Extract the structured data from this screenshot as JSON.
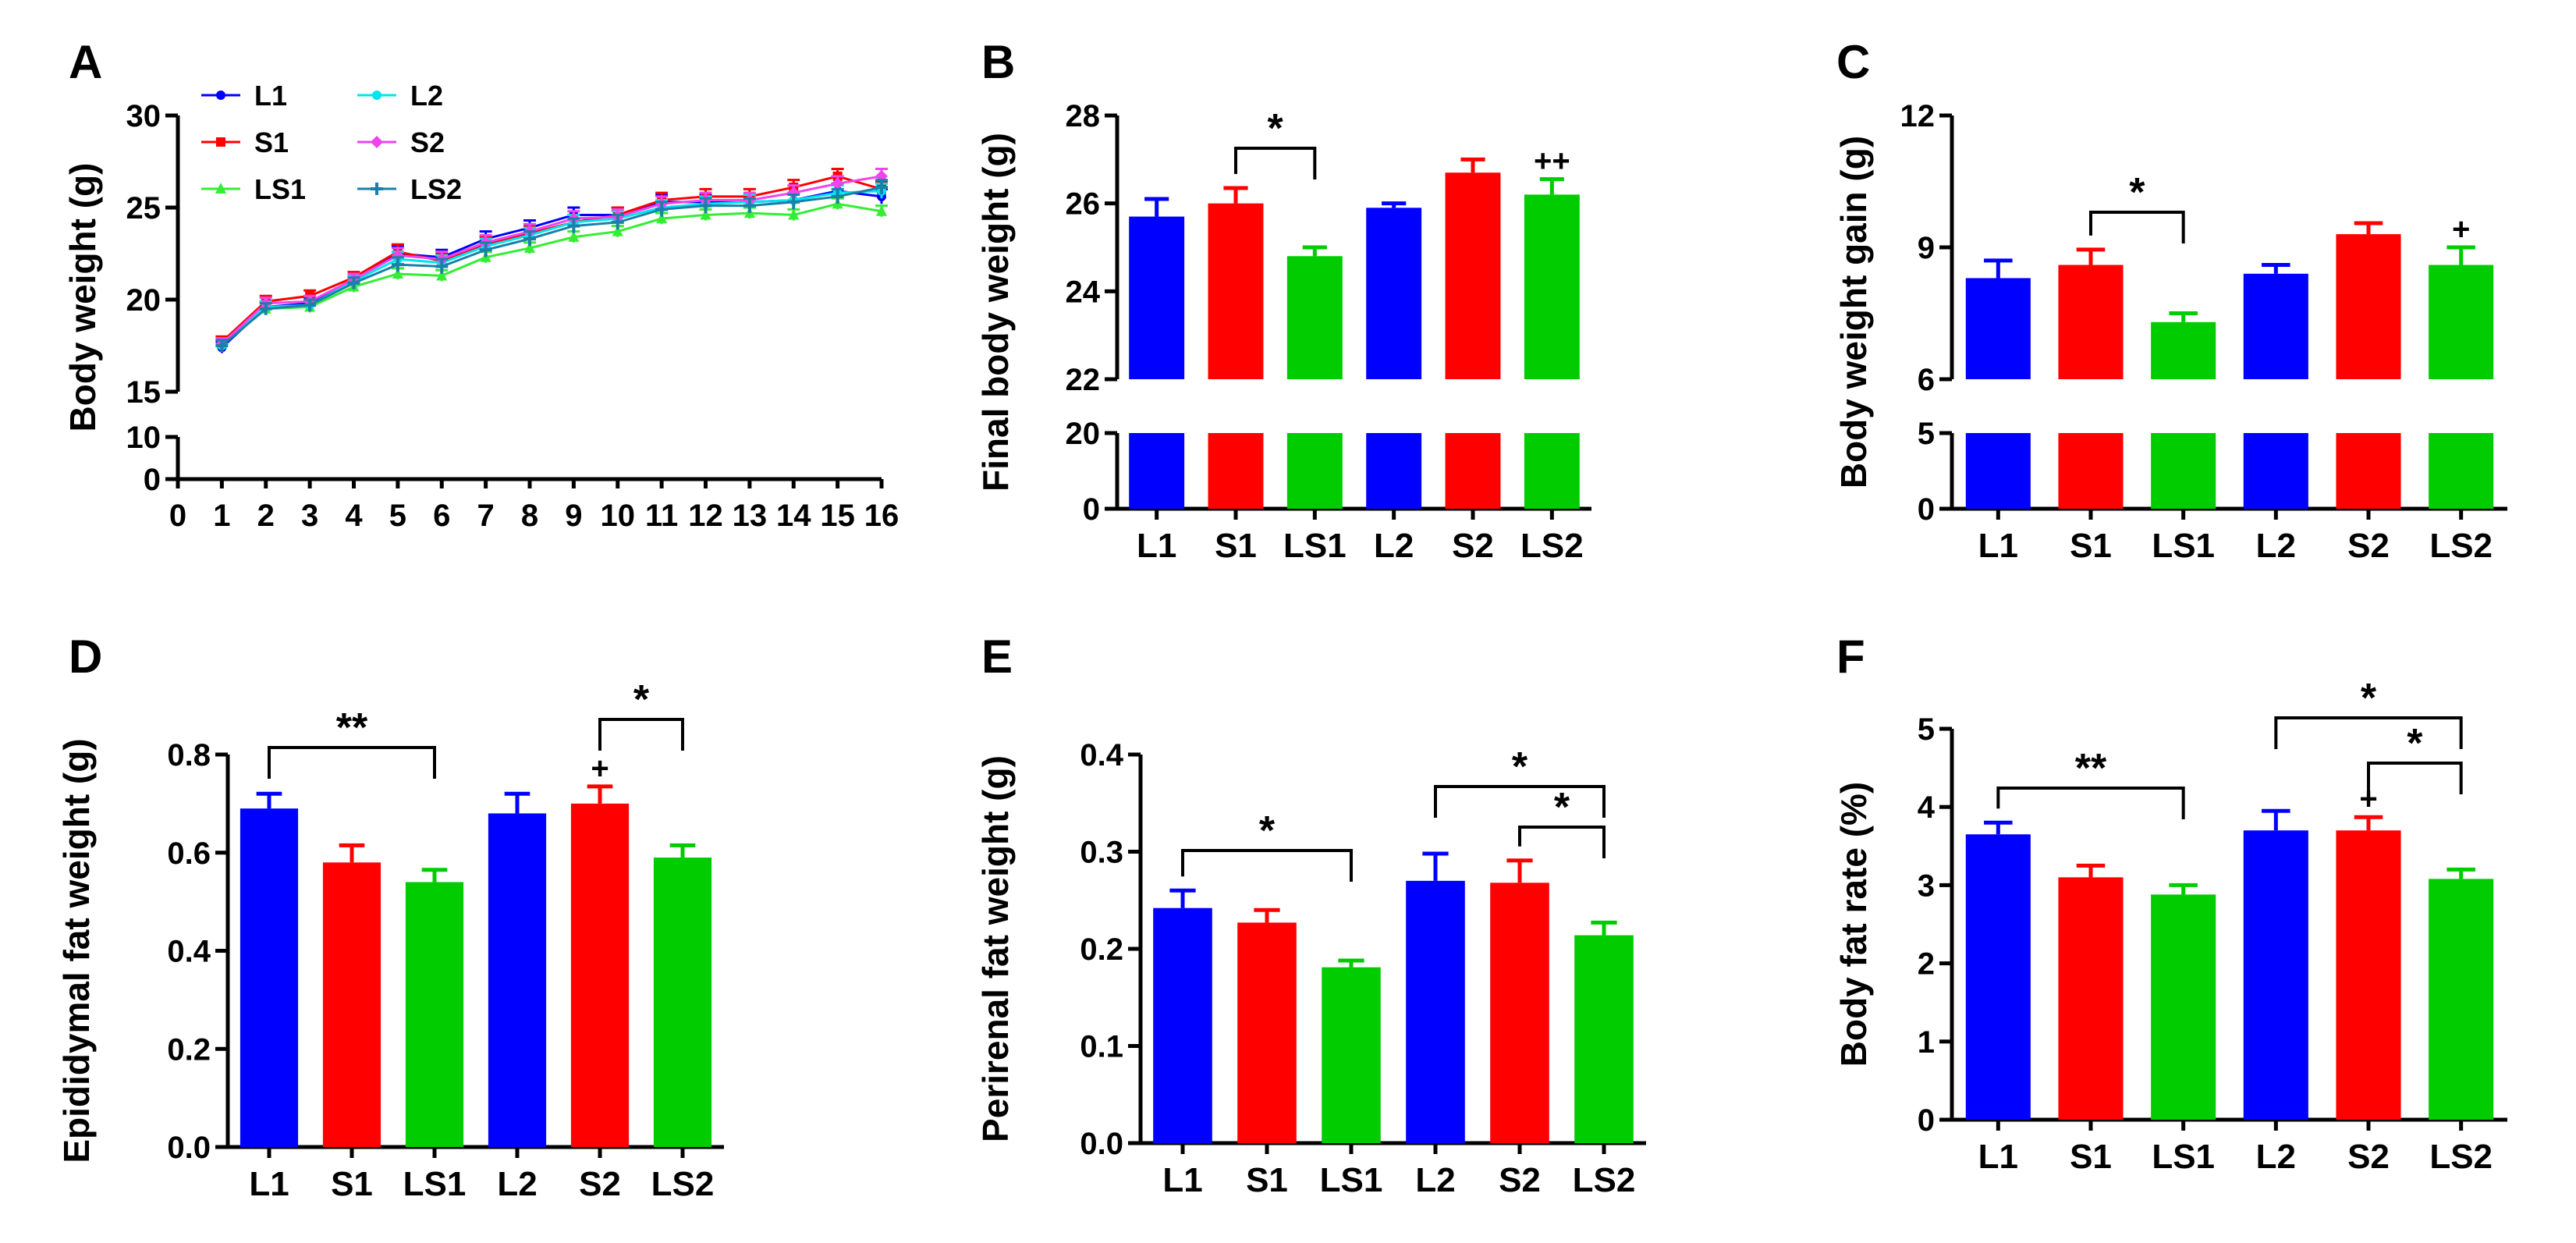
{
  "chart_data": [
    {
      "panel": "A",
      "type": "line",
      "ylabel": "Body weight (g)",
      "xlabel": "",
      "x": [
        1,
        2,
        3,
        4,
        5,
        6,
        7,
        8,
        9,
        10,
        11,
        12,
        13,
        14,
        15,
        16
      ],
      "xticks": [
        "0",
        "1",
        "2",
        "3",
        "4",
        "5",
        "6",
        "7",
        "8",
        "9",
        "10",
        "11",
        "12",
        "13",
        "14",
        "15",
        "16"
      ],
      "yticks_upper": [
        "15",
        "20",
        "25",
        "30"
      ],
      "yticks_lower": [
        "0",
        "10"
      ],
      "ylim_upper": [
        15,
        30
      ],
      "ylim_lower": [
        0,
        10
      ],
      "legend_position": "top-left",
      "series": [
        {
          "name": "L1",
          "color": "#0000ff",
          "marker": "circle",
          "values": [
            17.4,
            19.6,
            19.8,
            21.1,
            22.5,
            22.3,
            23.3,
            23.9,
            24.6,
            24.6,
            25.3,
            25.3,
            25.3,
            25.4,
            25.9,
            25.6
          ],
          "errors": [
            0.3,
            0.3,
            0.3,
            0.3,
            0.4,
            0.4,
            0.4,
            0.4,
            0.4,
            0.4,
            0.4,
            0.4,
            0.4,
            0.4,
            0.4,
            0.4
          ]
        },
        {
          "name": "S1",
          "color": "#ff0000",
          "marker": "square",
          "values": [
            17.7,
            19.9,
            20.2,
            21.2,
            22.6,
            22.1,
            23.0,
            23.6,
            24.2,
            24.6,
            25.4,
            25.6,
            25.6,
            26.1,
            26.7,
            26.0
          ],
          "errors": [
            0.3,
            0.3,
            0.3,
            0.3,
            0.4,
            0.4,
            0.4,
            0.4,
            0.4,
            0.4,
            0.4,
            0.4,
            0.4,
            0.4,
            0.4,
            0.4
          ]
        },
        {
          "name": "LS1",
          "color": "#33ee33",
          "marker": "triangle",
          "values": [
            17.6,
            19.5,
            19.6,
            20.7,
            21.4,
            21.3,
            22.3,
            22.8,
            23.4,
            23.7,
            24.4,
            24.6,
            24.7,
            24.6,
            25.2,
            24.8
          ],
          "errors": [
            0.3,
            0.3,
            0.3,
            0.3,
            0.3,
            0.3,
            0.3,
            0.3,
            0.3,
            0.3,
            0.3,
            0.3,
            0.3,
            0.3,
            0.3,
            0.3
          ]
        },
        {
          "name": "L2",
          "color": "#00e5ee",
          "marker": "circle",
          "values": [
            17.5,
            19.6,
            19.7,
            21.0,
            22.2,
            22.0,
            22.9,
            23.5,
            24.2,
            24.4,
            25.0,
            25.2,
            25.3,
            25.4,
            25.8,
            25.9
          ],
          "errors": [
            0.3,
            0.3,
            0.3,
            0.3,
            0.4,
            0.4,
            0.4,
            0.4,
            0.4,
            0.4,
            0.4,
            0.4,
            0.4,
            0.4,
            0.4,
            0.4
          ]
        },
        {
          "name": "S2",
          "color": "#ee44ee",
          "marker": "diamond",
          "values": [
            17.6,
            19.8,
            19.9,
            21.1,
            22.4,
            22.2,
            23.1,
            23.7,
            24.4,
            24.5,
            25.2,
            25.4,
            25.4,
            25.8,
            26.3,
            26.7
          ],
          "errors": [
            0.3,
            0.3,
            0.3,
            0.3,
            0.4,
            0.4,
            0.4,
            0.4,
            0.4,
            0.4,
            0.4,
            0.4,
            0.4,
            0.4,
            0.4,
            0.4
          ]
        },
        {
          "name": "LS2",
          "color": "#1a80a8",
          "marker": "star",
          "values": [
            17.5,
            19.5,
            19.7,
            20.9,
            21.9,
            21.8,
            22.7,
            23.3,
            24.0,
            24.2,
            24.9,
            25.1,
            25.1,
            25.3,
            25.6,
            26.1
          ],
          "errors": [
            0.3,
            0.3,
            0.3,
            0.3,
            0.4,
            0.4,
            0.4,
            0.4,
            0.4,
            0.4,
            0.4,
            0.4,
            0.4,
            0.4,
            0.4,
            0.4
          ]
        }
      ]
    },
    {
      "panel": "B",
      "type": "bar",
      "ylabel": "Final body weight (g)",
      "categories": [
        "L1",
        "S1",
        "LS1",
        "L2",
        "S2",
        "LS2"
      ],
      "colors": [
        "#0000ff",
        "#ff0000",
        "#00cc00",
        "#0000ff",
        "#ff0000",
        "#00cc00"
      ],
      "values": [
        25.7,
        26.0,
        24.8,
        25.9,
        26.7,
        26.2
      ],
      "errors": [
        0.4,
        0.35,
        0.2,
        0.1,
        0.3,
        0.35
      ],
      "ylim_upper": [
        22,
        28
      ],
      "yticks_upper": [
        "22",
        "24",
        "26",
        "28"
      ],
      "ylim_lower": [
        0,
        20
      ],
      "yticks_lower": [
        "0",
        "20"
      ],
      "brackets": [
        {
          "from": 1,
          "to": 2,
          "label": "*"
        }
      ],
      "marks": [
        {
          "bar": 5,
          "label": "++"
        }
      ]
    },
    {
      "panel": "C",
      "type": "bar",
      "ylabel": "Body weight gain (g)",
      "categories": [
        "L1",
        "S1",
        "LS1",
        "L2",
        "S2",
        "LS2"
      ],
      "colors": [
        "#0000ff",
        "#ff0000",
        "#00cc00",
        "#0000ff",
        "#ff0000",
        "#00cc00"
      ],
      "values": [
        8.3,
        8.6,
        7.3,
        8.4,
        9.3,
        8.6
      ],
      "errors": [
        0.4,
        0.35,
        0.2,
        0.2,
        0.25,
        0.4
      ],
      "ylim_upper": [
        6,
        12
      ],
      "yticks_upper": [
        "6",
        "9",
        "12"
      ],
      "ylim_lower": [
        0,
        5
      ],
      "yticks_lower": [
        "0",
        "5"
      ],
      "brackets": [
        {
          "from": 1,
          "to": 2,
          "label": "*"
        }
      ],
      "marks": [
        {
          "bar": 5,
          "label": "+"
        }
      ]
    },
    {
      "panel": "D",
      "type": "bar",
      "ylabel": "Epididymal fat weight (g)",
      "categories": [
        "L1",
        "S1",
        "LS1",
        "L2",
        "S2",
        "LS2"
      ],
      "colors": [
        "#0000ff",
        "#ff0000",
        "#00cc00",
        "#0000ff",
        "#ff0000",
        "#00cc00"
      ],
      "values": [
        0.69,
        0.58,
        0.54,
        0.68,
        0.7,
        0.59
      ],
      "errors": [
        0.03,
        0.035,
        0.025,
        0.04,
        0.035,
        0.025
      ],
      "ylim": [
        0,
        0.8
      ],
      "yticks": [
        "0.0",
        "0.2",
        "0.4",
        "0.6",
        "0.8"
      ],
      "brackets": [
        {
          "from": 0,
          "to": 2,
          "label": "**"
        },
        {
          "from": 4,
          "to": 5,
          "label": "*"
        }
      ],
      "marks": [
        {
          "bar": 4,
          "label": "+"
        }
      ]
    },
    {
      "panel": "E",
      "type": "bar",
      "ylabel": "Perirenal fat weight (g)",
      "categories": [
        "L1",
        "S1",
        "LS1",
        "L2",
        "S2",
        "LS2"
      ],
      "colors": [
        "#0000ff",
        "#ff0000",
        "#00cc00",
        "#0000ff",
        "#ff0000",
        "#00cc00"
      ],
      "values": [
        0.242,
        0.227,
        0.181,
        0.27,
        0.268,
        0.214
      ],
      "errors": [
        0.018,
        0.013,
        0.007,
        0.028,
        0.023,
        0.013
      ],
      "ylim": [
        0,
        0.4
      ],
      "yticks": [
        "0.0",
        "0.1",
        "0.2",
        "0.3",
        "0.4"
      ],
      "brackets": [
        {
          "from": 0,
          "to": 2,
          "label": "*"
        },
        {
          "from": 3,
          "to": 5,
          "label": "*"
        },
        {
          "from": 4,
          "to": 5,
          "label": "*"
        }
      ],
      "marks": []
    },
    {
      "panel": "F",
      "type": "bar",
      "ylabel": "Body fat rate (%)",
      "categories": [
        "L1",
        "S1",
        "LS1",
        "L2",
        "S2",
        "LS2"
      ],
      "colors": [
        "#0000ff",
        "#ff0000",
        "#00cc00",
        "#0000ff",
        "#ff0000",
        "#00cc00"
      ],
      "values": [
        3.65,
        3.1,
        2.88,
        3.7,
        3.7,
        3.08
      ],
      "errors": [
        0.15,
        0.15,
        0.12,
        0.25,
        0.17,
        0.12
      ],
      "ylim": [
        0,
        5
      ],
      "yticks": [
        "0",
        "1",
        "2",
        "3",
        "4",
        "5"
      ],
      "brackets": [
        {
          "from": 0,
          "to": 2,
          "label": "**"
        },
        {
          "from": 3,
          "to": 5,
          "label": "*"
        },
        {
          "from": 4,
          "to": 5,
          "label": "*"
        }
      ],
      "marks": [
        {
          "bar": 4,
          "label": "+"
        }
      ]
    }
  ]
}
